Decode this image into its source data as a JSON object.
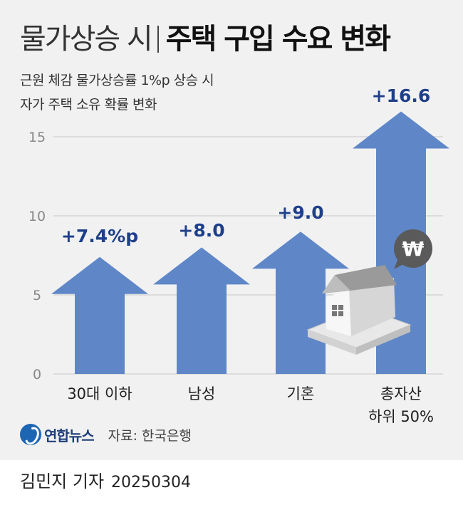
{
  "title": {
    "light": "물가상승 시",
    "bold": "주택 구입 수요 변화"
  },
  "subtitle": [
    "근원 체감 물가상승률 1%p 상승 시",
    "자가 주택 소유 확률 변화"
  ],
  "source": {
    "logo": "연합뉴스",
    "text": "자료: 한국은행"
  },
  "byline": {
    "author": "김민지 기자",
    "date": "20250304"
  },
  "colors": {
    "bar": "#5f87c8",
    "label": "#1e3f8a",
    "grid": "#c6c6c6",
    "background": "#f1f1f2"
  },
  "chart_data": {
    "type": "bar",
    "categories": [
      [
        "30대 이하"
      ],
      [
        "남성"
      ],
      [
        "기혼"
      ],
      [
        "총자산",
        "하위 50%"
      ]
    ],
    "values": [
      7.4,
      8.0,
      9.0,
      16.6
    ],
    "value_labels": [
      "+7.4%p",
      "+8.0",
      "+9.0",
      "+16.6"
    ],
    "yticks": [
      0,
      5,
      10,
      15
    ],
    "ylim": [
      0,
      15
    ],
    "grid": true,
    "bar_shape": "arrow",
    "illustration": {
      "house_icon": "house-icon",
      "won_badge": "₩"
    }
  }
}
